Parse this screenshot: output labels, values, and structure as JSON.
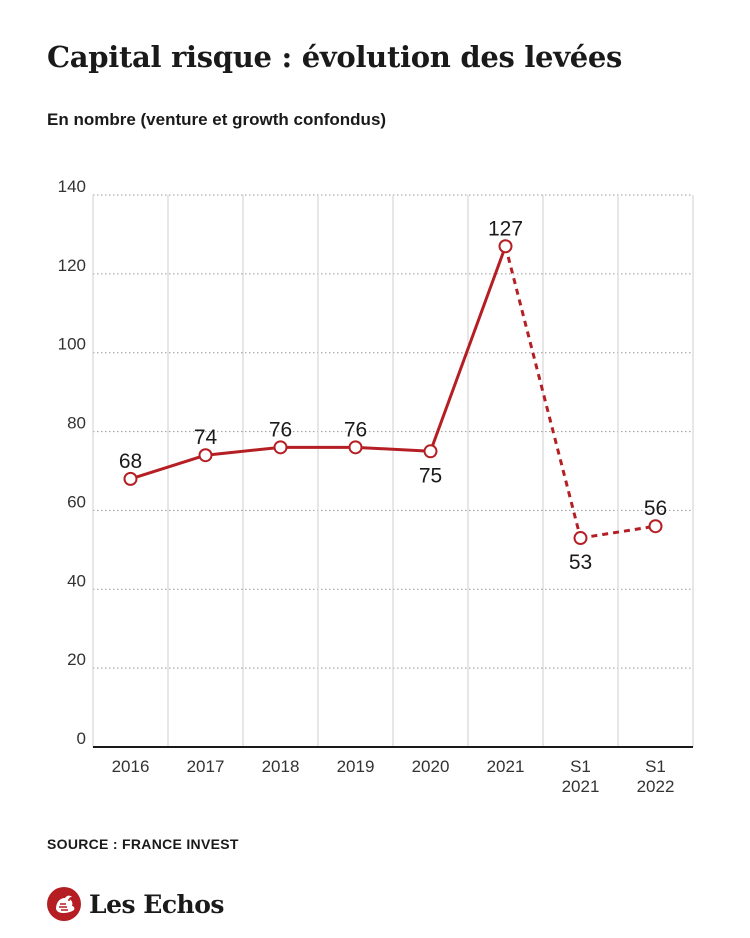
{
  "title": "Capital risque : évolution des levées",
  "subtitle": "En nombre (venture et growth confondus)",
  "source": "SOURCE : FRANCE INVEST",
  "brand": "Les Echos",
  "brand_logo_icon": "les-echos-rooster-logo-icon",
  "colors": {
    "series": "#b51f24",
    "text": "#1a1a1a",
    "grid": "#9a9a9a",
    "axis": "#1a1a1a"
  },
  "chart_data": {
    "type": "line",
    "title": "Capital risque : évolution des levées",
    "subtitle": "En nombre (venture et growth confondus)",
    "xlabel": "",
    "ylabel": "",
    "ylim": [
      0,
      140
    ],
    "yticks": [
      0,
      20,
      40,
      60,
      80,
      100,
      120,
      140
    ],
    "categories": [
      [
        "2016"
      ],
      [
        "2017"
      ],
      [
        "2018"
      ],
      [
        "2019"
      ],
      [
        "2020"
      ],
      [
        "2021"
      ],
      [
        "S1",
        "2021"
      ],
      [
        "S1",
        "2022"
      ]
    ],
    "values": [
      68,
      74,
      76,
      76,
      75,
      127,
      53,
      56
    ],
    "data_labels": [
      "68",
      "74",
      "76",
      "76",
      "75",
      "127",
      "53",
      "56"
    ],
    "label_position": [
      "above",
      "above",
      "above",
      "above",
      "below",
      "above",
      "below",
      "above"
    ],
    "segment_style": [
      "solid",
      "solid",
      "solid",
      "solid",
      "solid",
      "dashed",
      "dashed"
    ],
    "grid": true,
    "legend": "none"
  }
}
